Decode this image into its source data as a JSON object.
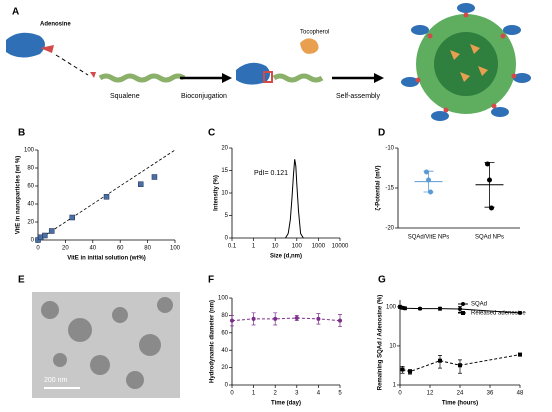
{
  "panel_labels": [
    "A",
    "B",
    "C",
    "D",
    "E",
    "F",
    "G"
  ],
  "scheme": {
    "adenosine": "Adenosine",
    "squalene": "Squalene",
    "step1": "Bioconjugation",
    "tocopherol": "Tocopherol",
    "step2": "Self-assembly"
  },
  "micrograph": {
    "scale_bar": "200 nm"
  },
  "chart_data": [
    {
      "type": "scatter",
      "xlabel": "VitE in initial solution (wt%)",
      "ylabel": "VitE in nanoparticles (wt %)",
      "x": [
        0,
        2,
        5,
        10,
        25,
        50,
        75,
        85
      ],
      "values": [
        0,
        3,
        5,
        10,
        25,
        48,
        62,
        70
      ],
      "color": "#4a6fa5",
      "xlim": [
        0,
        100
      ],
      "xticks": [
        0,
        20,
        40,
        60,
        80,
        100
      ],
      "ylim": [
        0,
        100
      ],
      "yticks": [
        0,
        20,
        40,
        60,
        80,
        100
      ],
      "identity_line": true
    },
    {
      "type": "line",
      "xlabel": "Size (d,nm)",
      "ylabel": "Intensity (%)",
      "annotation": "PdI= 0.121",
      "x": [
        30,
        40,
        50,
        60,
        70,
        80,
        90,
        100,
        120,
        150,
        200
      ],
      "values": [
        0,
        1,
        4,
        9,
        14,
        17.5,
        16,
        12,
        6,
        1,
        0
      ],
      "color": "#000000",
      "xscale": "log",
      "xlim": [
        0.1,
        10000
      ],
      "xticks": [
        0.1,
        1,
        10,
        100,
        1000,
        10000
      ],
      "ylim": [
        0,
        20
      ],
      "yticks": [
        0,
        5,
        10,
        15,
        20
      ]
    },
    {
      "type": "dot",
      "ylabel": "ζ-Potential (mV)",
      "categories": [
        "SQAd/VitE NPs",
        "SQAd NPs"
      ],
      "points": [
        [
          -13,
          -14,
          -15.5
        ],
        [
          -12,
          -14,
          -17.5
        ]
      ],
      "means": [
        -14.2,
        -14.6
      ],
      "sds": [
        1.3,
        2.8
      ],
      "colors": [
        "#5b9bd5",
        "#000000"
      ],
      "ylim": [
        -20,
        -10
      ],
      "yticks": [
        -20,
        -15,
        -10
      ]
    },
    {
      "type": "line",
      "xlabel": "Time (day)",
      "ylabel": "Hydrodynamic diameter (nm)",
      "x": [
        0,
        1,
        2,
        3,
        4,
        5
      ],
      "values": [
        74,
        76,
        76,
        77,
        76,
        74
      ],
      "errors": [
        6,
        7,
        7,
        3,
        6,
        7
      ],
      "color": "#7b2d8b",
      "dashed": true,
      "markers": true,
      "xlim": [
        0,
        5
      ],
      "xticks": [
        0,
        1,
        2,
        3,
        4,
        5
      ],
      "ylim": [
        0,
        100
      ],
      "yticks": [
        0,
        20,
        40,
        60,
        80,
        100
      ]
    },
    {
      "type": "line",
      "xlabel": "Time (hours)",
      "ylabel": "Remaining SQAd / Adenosine (%)",
      "yscale": "log",
      "xlim": [
        0,
        48
      ],
      "xticks": [
        0,
        12,
        24,
        36,
        48
      ],
      "ylim": [
        1,
        150
      ],
      "yticks": [
        1,
        10,
        100
      ],
      "legend": "top-right",
      "series": [
        {
          "name": "SQAd",
          "marker": "circle",
          "color": "#000000",
          "x": [
            0,
            1,
            2,
            8,
            16,
            24,
            48
          ],
          "values": [
            100,
            95,
            92,
            90,
            90,
            88,
            70
          ],
          "errors": [
            10,
            8,
            8,
            6,
            8,
            15,
            4
          ]
        },
        {
          "name": "Released adenosine",
          "marker": "square",
          "dashed": true,
          "color": "#000000",
          "x": [
            1,
            4,
            16,
            24,
            48
          ],
          "values": [
            2.5,
            2.2,
            4.2,
            3.2,
            6
          ],
          "errors": [
            0.5,
            0.3,
            1.5,
            1.2,
            0.5
          ]
        }
      ]
    }
  ]
}
